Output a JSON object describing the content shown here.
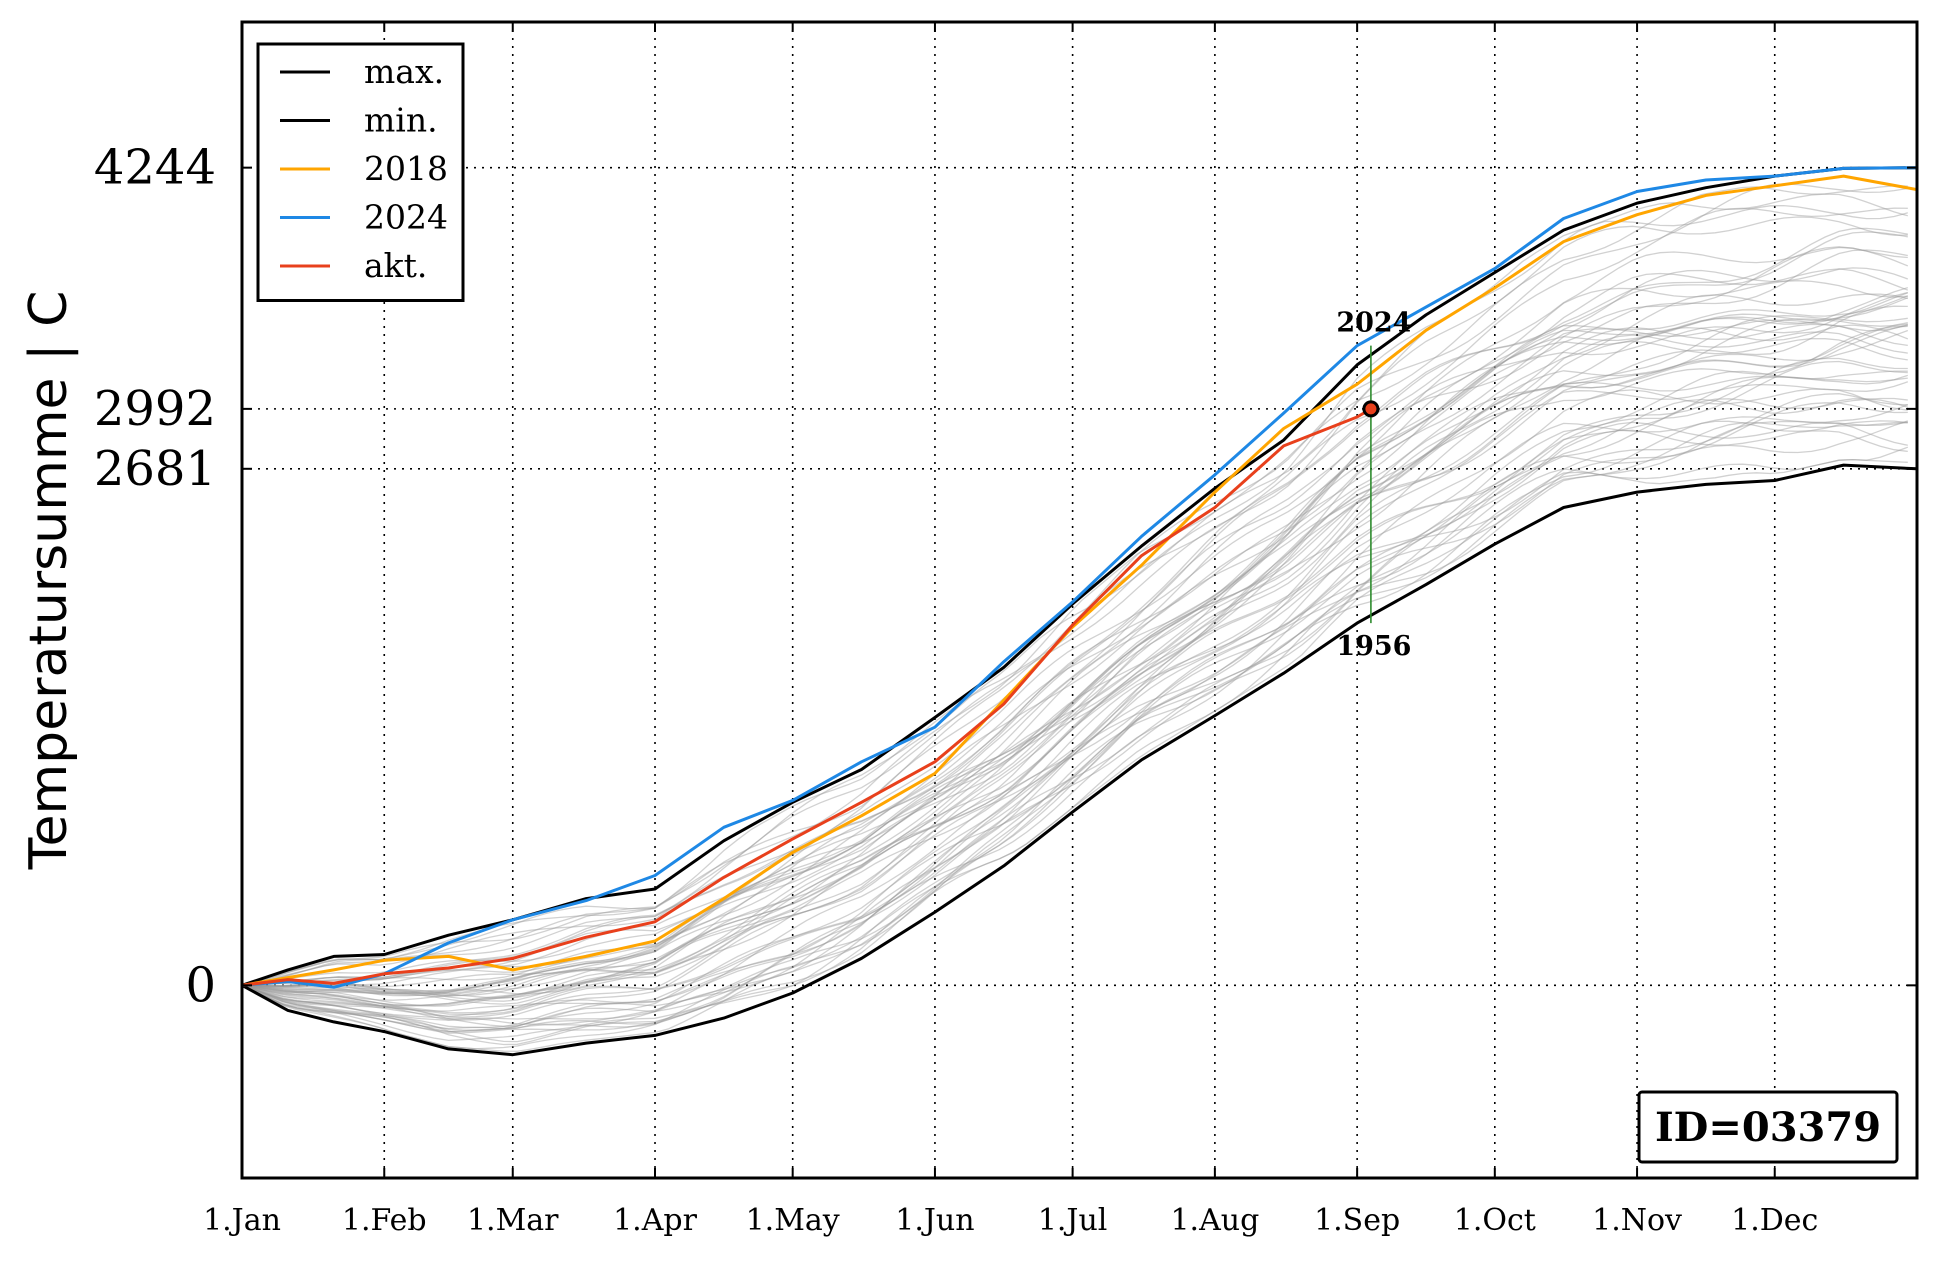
{
  "chart_data": {
    "type": "line",
    "title": "",
    "xlabel": "",
    "ylabel": "Temperatursumme | C",
    "x_ticks": [
      "1.Jan",
      "1.Feb",
      "1.Mar",
      "1.Apr",
      "1.May",
      "1.Jun",
      "1.Jul",
      "1.Aug",
      "1.Sep",
      "1.Oct",
      "1.Nov",
      "1.Dec"
    ],
    "x_tick_days": [
      0,
      31,
      59,
      90,
      120,
      151,
      181,
      212,
      243,
      273,
      304,
      334
    ],
    "y_ticks": [
      0,
      2681,
      2992,
      4244
    ],
    "y_tick_labels": [
      "0",
      "2681",
      "2992",
      "4244"
    ],
    "xlim": [
      0,
      365
    ],
    "ylim": [
      -1000,
      5000
    ],
    "grid": true,
    "legend_position": "top-left",
    "legend": [
      "max.",
      "min.",
      "2018",
      "2024",
      "akt."
    ],
    "series": [
      {
        "name": "max.",
        "color": "#000000",
        "x": [
          0,
          10,
          20,
          31,
          45,
          59,
          75,
          90,
          105,
          120,
          135,
          151,
          166,
          181,
          196,
          212,
          227,
          243,
          258,
          273,
          288,
          304,
          319,
          334,
          349,
          365
        ],
        "y": [
          0,
          80,
          150,
          160,
          260,
          340,
          450,
          500,
          750,
          950,
          1120,
          1390,
          1650,
          1980,
          2280,
          2580,
          2830,
          3220,
          3480,
          3700,
          3920,
          4060,
          4140,
          4200,
          4240,
          4244
        ]
      },
      {
        "name": "min.",
        "color": "#000000",
        "x": [
          0,
          10,
          20,
          31,
          45,
          59,
          75,
          90,
          105,
          120,
          135,
          151,
          166,
          181,
          196,
          212,
          227,
          243,
          258,
          273,
          288,
          304,
          319,
          334,
          349,
          365
        ],
        "y": [
          0,
          -130,
          -190,
          -240,
          -330,
          -360,
          -300,
          -260,
          -170,
          -40,
          140,
          380,
          620,
          900,
          1170,
          1400,
          1620,
          1880,
          2080,
          2290,
          2480,
          2560,
          2600,
          2620,
          2700,
          2681
        ]
      },
      {
        "name": "2018",
        "color": "#FFA500",
        "x": [
          0,
          10,
          20,
          31,
          45,
          59,
          75,
          90,
          105,
          120,
          135,
          151,
          166,
          181,
          196,
          212,
          227,
          243,
          258,
          273,
          288,
          304,
          319,
          334,
          349,
          365
        ],
        "y": [
          0,
          40,
          80,
          130,
          150,
          80,
          150,
          230,
          450,
          690,
          880,
          1100,
          1480,
          1860,
          2180,
          2560,
          2890,
          3120,
          3400,
          3620,
          3860,
          4000,
          4100,
          4150,
          4200,
          4130
        ]
      },
      {
        "name": "2024",
        "color": "#1E88E5",
        "x": [
          0,
          10,
          20,
          31,
          45,
          59,
          75,
          90,
          105,
          120,
          135,
          151,
          166,
          181,
          196,
          212,
          227,
          243,
          258,
          273,
          288,
          304,
          319,
          334,
          349,
          365
        ],
        "y": [
          0,
          20,
          -10,
          60,
          220,
          340,
          440,
          570,
          820,
          960,
          1160,
          1340,
          1680,
          1990,
          2330,
          2650,
          2970,
          3320,
          3520,
          3720,
          3980,
          4120,
          4180,
          4200,
          4240,
          4244
        ]
      },
      {
        "name": "akt.",
        "color": "#E8401C",
        "x": [
          0,
          10,
          20,
          31,
          45,
          59,
          75,
          90,
          105,
          120,
          135,
          151,
          166,
          181,
          196,
          212,
          227,
          243,
          246
        ],
        "y": [
          0,
          30,
          10,
          60,
          90,
          140,
          250,
          330,
          560,
          760,
          950,
          1160,
          1460,
          1870,
          2230,
          2480,
          2800,
          2950,
          2992
        ]
      }
    ],
    "current_marker": {
      "x": 246,
      "y": 2992
    },
    "annotations": [
      {
        "text": "2024",
        "x": 246,
        "y": 3320
      },
      {
        "text": "1956",
        "x": 246,
        "y": 1880
      }
    ],
    "id_label": "ID=03379"
  }
}
